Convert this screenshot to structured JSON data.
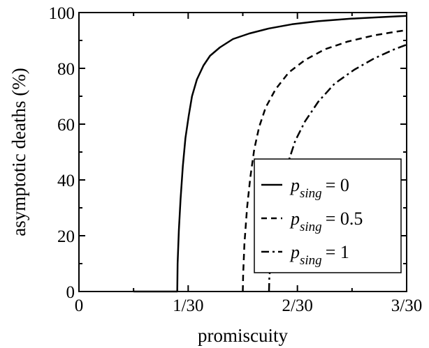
{
  "chart_data": {
    "type": "line",
    "title": "",
    "xlabel": "promiscuity",
    "ylabel": "asymptotic deaths (%)",
    "xlim": [
      0,
      0.1
    ],
    "ylim": [
      0,
      100
    ],
    "x_ticks": [
      0,
      0.033333,
      0.066667,
      0.1
    ],
    "x_tick_labels": [
      "0",
      "1/30",
      "2/30",
      "3/30"
    ],
    "y_ticks": [
      0,
      20,
      40,
      60,
      80,
      100
    ],
    "y_tick_labels": [
      "0",
      "20",
      "40",
      "60",
      "80",
      "100"
    ],
    "grid": false,
    "legend_position": "lower-right",
    "series": [
      {
        "name": "p_sing = 0",
        "legend_symbol": "p",
        "legend_subscript": "sing",
        "legend_value": "= 0",
        "style": "solid",
        "color": "#000000",
        "x": [
          0.01667,
          0.03,
          0.0301,
          0.0305,
          0.031,
          0.0317,
          0.0325,
          0.0335,
          0.0345,
          0.036,
          0.038,
          0.04,
          0.043,
          0.047,
          0.052,
          0.058,
          0.065,
          0.073,
          0.083,
          0.093,
          0.1
        ],
        "y": [
          0,
          0,
          10,
          22,
          33,
          45,
          55,
          63,
          70,
          76,
          81,
          84.5,
          87.5,
          90.5,
          92.5,
          94.3,
          95.8,
          96.9,
          97.8,
          98.4,
          98.8
        ]
      },
      {
        "name": "p_sing = 0.5",
        "legend_symbol": "p",
        "legend_subscript": "sing",
        "legend_value": "= 0.5",
        "style": "dashed",
        "color": "#000000",
        "x": [
          0.05,
          0.0501,
          0.0505,
          0.0513,
          0.0523,
          0.0535,
          0.055,
          0.057,
          0.06,
          0.064,
          0.069,
          0.075,
          0.082,
          0.09,
          0.097,
          0.1
        ],
        "y": [
          0,
          6,
          17,
          30,
          41,
          51,
          59,
          66,
          72.5,
          78.5,
          83,
          86.8,
          89.6,
          91.8,
          93.2,
          93.7
        ]
      },
      {
        "name": "p_sing = 1",
        "legend_symbol": "p",
        "legend_subscript": "sing",
        "legend_value": "= 1",
        "style": "dashdot",
        "color": "#000000",
        "x": [
          0.058,
          0.0581,
          0.0588,
          0.06,
          0.0615,
          0.0635,
          0.066,
          0.069,
          0.073,
          0.078,
          0.084,
          0.09,
          0.096,
          0.1
        ],
        "y": [
          0,
          5,
          15,
          26,
          36,
          45,
          54,
          61,
          68,
          74.5,
          79.5,
          83.5,
          86.7,
          88.5
        ]
      }
    ]
  }
}
